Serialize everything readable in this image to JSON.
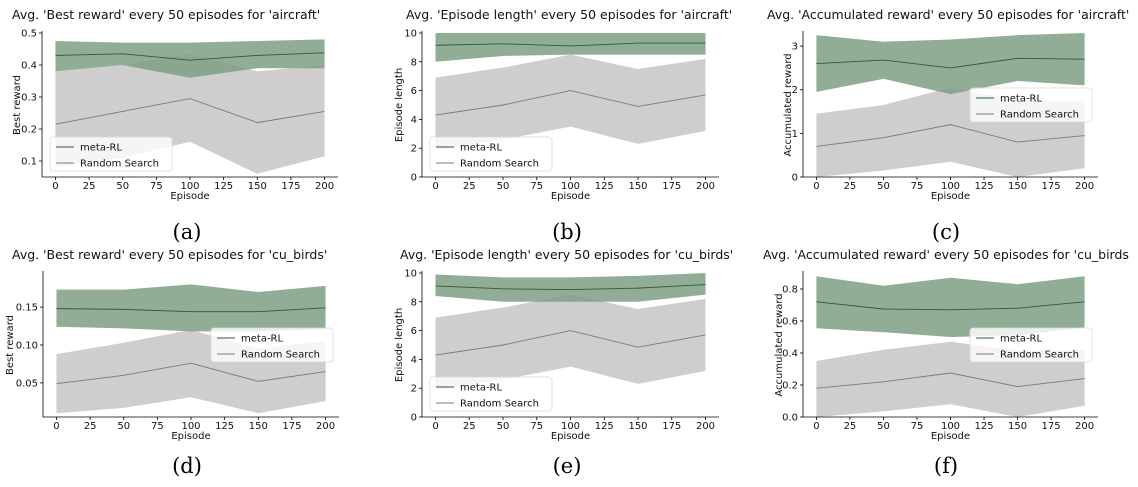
{
  "colors": {
    "meta_rl_line": "#2f5a39",
    "meta_rl_band": "#7f9f84",
    "random_line": "#7a7a7a",
    "random_band": "#bdbdbd"
  },
  "chart_data": [
    {
      "type": "line",
      "caption": "(a)",
      "title": "Avg. 'Best reward' every 50 episodes for 'aircraft'",
      "xlabel": "Episode",
      "ylabel": "Best reward",
      "xlim": [
        -10,
        210
      ],
      "ylim": [
        0.05,
        0.5
      ],
      "xticks": [
        0,
        25,
        50,
        75,
        100,
        125,
        150,
        175,
        200
      ],
      "yticks": [
        0.1,
        0.2,
        0.3,
        0.4,
        0.5
      ],
      "ytick_labels": [
        "0.1",
        "0.2",
        "0.3",
        "0.4",
        "0.5"
      ],
      "legend": "lower-left",
      "series": [
        {
          "name": "meta-RL",
          "x": [
            0,
            50,
            100,
            150,
            200
          ],
          "values": [
            0.43,
            0.435,
            0.415,
            0.43,
            0.438
          ],
          "lower": [
            0.38,
            0.4,
            0.36,
            0.39,
            0.39
          ],
          "upper": [
            0.475,
            0.47,
            0.47,
            0.475,
            0.48
          ]
        },
        {
          "name": "Random Search",
          "x": [
            0,
            50,
            100,
            150,
            200
          ],
          "values": [
            0.215,
            0.255,
            0.295,
            0.22,
            0.255
          ],
          "lower": [
            0.08,
            0.11,
            0.16,
            0.06,
            0.115
          ],
          "upper": [
            0.38,
            0.4,
            0.435,
            0.38,
            0.4
          ]
        }
      ]
    },
    {
      "type": "line",
      "caption": "(b)",
      "title": "Avg. 'Episode length' every 50 episodes for 'aircraft'",
      "xlabel": "Episode",
      "ylabel": "Episode length",
      "xlim": [
        -10,
        210
      ],
      "ylim": [
        0,
        10
      ],
      "xticks": [
        0,
        25,
        50,
        75,
        100,
        125,
        150,
        175,
        200
      ],
      "yticks": [
        0,
        2,
        4,
        6,
        8,
        10
      ],
      "ytick_labels": [
        "0",
        "2",
        "4",
        "6",
        "8",
        "10"
      ],
      "legend": "lower-left",
      "series": [
        {
          "name": "meta-RL",
          "x": [
            0,
            50,
            100,
            150,
            200
          ],
          "values": [
            9.15,
            9.25,
            9.1,
            9.3,
            9.3
          ],
          "lower": [
            8.0,
            8.4,
            8.5,
            8.5,
            8.5
          ],
          "upper": [
            10.0,
            10.0,
            10.0,
            10.0,
            10.0
          ]
        },
        {
          "name": "Random Search",
          "x": [
            0,
            50,
            100,
            150,
            200
          ],
          "values": [
            4.3,
            5.0,
            6.0,
            4.9,
            5.7
          ],
          "lower": [
            1.9,
            2.6,
            3.5,
            2.3,
            3.2
          ],
          "upper": [
            6.9,
            7.6,
            8.5,
            7.5,
            8.2
          ]
        }
      ]
    },
    {
      "type": "line",
      "caption": "(c)",
      "title": "Avg. 'Accumulated reward' every 50 episodes for 'aircraft'",
      "xlabel": "Episode",
      "ylabel": "Accumulated reward",
      "xlim": [
        -10,
        210
      ],
      "ylim": [
        0,
        3.3
      ],
      "xticks": [
        0,
        25,
        50,
        75,
        100,
        125,
        150,
        175,
        200
      ],
      "yticks": [
        0,
        1,
        2,
        3
      ],
      "ytick_labels": [
        "0",
        "1",
        "2",
        "3"
      ],
      "legend": "center-right",
      "series": [
        {
          "name": "meta-RL",
          "x": [
            0,
            50,
            100,
            150,
            200
          ],
          "values": [
            2.6,
            2.68,
            2.5,
            2.72,
            2.7
          ],
          "lower": [
            1.95,
            2.25,
            1.9,
            2.2,
            2.1
          ],
          "upper": [
            3.25,
            3.1,
            3.15,
            3.25,
            3.3
          ]
        },
        {
          "name": "Random Search",
          "x": [
            0,
            50,
            100,
            150,
            200
          ],
          "values": [
            0.7,
            0.9,
            1.2,
            0.8,
            0.95
          ],
          "lower": [
            0.0,
            0.15,
            0.35,
            0.0,
            0.2
          ],
          "upper": [
            1.45,
            1.65,
            2.05,
            1.75,
            1.75
          ]
        }
      ]
    },
    {
      "type": "line",
      "caption": "(d)",
      "title": "Avg. 'Best reward' every 50 episodes for 'cu_birds'",
      "xlabel": "Episode",
      "ylabel": "Best reward",
      "xlim": [
        -10,
        210
      ],
      "ylim": [
        0.005,
        0.195
      ],
      "xticks": [
        0,
        25,
        50,
        75,
        100,
        125,
        150,
        175,
        200
      ],
      "yticks": [
        0.05,
        0.1,
        0.15
      ],
      "ytick_labels": [
        "0.05",
        "0.10",
        "0.15"
      ],
      "legend": "center-right",
      "series": [
        {
          "name": "meta-RL",
          "x": [
            0,
            50,
            100,
            150,
            200
          ],
          "values": [
            0.148,
            0.147,
            0.144,
            0.144,
            0.149
          ],
          "lower": [
            0.124,
            0.122,
            0.118,
            0.118,
            0.121
          ],
          "upper": [
            0.173,
            0.173,
            0.18,
            0.17,
            0.178
          ]
        },
        {
          "name": "Random Search",
          "x": [
            0,
            50,
            100,
            150,
            200
          ],
          "values": [
            0.049,
            0.06,
            0.076,
            0.052,
            0.065
          ],
          "lower": [
            0.01,
            0.017,
            0.031,
            0.01,
            0.026
          ],
          "upper": [
            0.088,
            0.103,
            0.12,
            0.095,
            0.105
          ]
        }
      ]
    },
    {
      "type": "line",
      "caption": "(e)",
      "title": "Avg. 'Episode length' every 50 episodes for 'cu_birds'",
      "xlabel": "Episode",
      "ylabel": "Episode length",
      "xlim": [
        -10,
        210
      ],
      "ylim": [
        0,
        10
      ],
      "xticks": [
        0,
        25,
        50,
        75,
        100,
        125,
        150,
        175,
        200
      ],
      "yticks": [
        0,
        2,
        4,
        6,
        8,
        10
      ],
      "ytick_labels": [
        "0",
        "2",
        "4",
        "6",
        "8",
        "10"
      ],
      "legend": "lower-left",
      "series": [
        {
          "name": "meta-RL",
          "x": [
            0,
            50,
            100,
            150,
            200
          ],
          "values": [
            9.1,
            8.9,
            8.85,
            8.95,
            9.2
          ],
          "lower": [
            8.4,
            8.0,
            8.0,
            8.0,
            8.5
          ],
          "upper": [
            9.9,
            9.7,
            9.7,
            9.8,
            10.0
          ]
        },
        {
          "name": "Random Search",
          "x": [
            0,
            50,
            100,
            150,
            200
          ],
          "values": [
            4.3,
            5.0,
            6.0,
            4.85,
            5.7
          ],
          "lower": [
            1.9,
            2.6,
            3.5,
            2.3,
            3.2
          ],
          "upper": [
            6.9,
            7.6,
            8.5,
            7.5,
            8.2
          ]
        }
      ]
    },
    {
      "type": "line",
      "caption": "(f)",
      "title": "Avg. 'Accumulated reward' every 50 episodes for 'cu_birds",
      "xlabel": "Episode",
      "ylabel": "Accumulated reward",
      "xlim": [
        -10,
        210
      ],
      "ylim": [
        0,
        0.9
      ],
      "xticks": [
        0,
        25,
        50,
        75,
        100,
        125,
        150,
        175,
        200
      ],
      "yticks": [
        0,
        0.2,
        0.4,
        0.6,
        0.8
      ],
      "ytick_labels": [
        "0.0",
        "0.2",
        "0.4",
        "0.6",
        "0.8"
      ],
      "legend": "center-right",
      "series": [
        {
          "name": "meta-RL",
          "x": [
            0,
            50,
            100,
            150,
            200
          ],
          "values": [
            0.72,
            0.675,
            0.67,
            0.68,
            0.72
          ],
          "lower": [
            0.555,
            0.53,
            0.5,
            0.51,
            0.56
          ],
          "upper": [
            0.88,
            0.82,
            0.87,
            0.83,
            0.88
          ]
        },
        {
          "name": "Random Search",
          "x": [
            0,
            50,
            100,
            150,
            200
          ],
          "values": [
            0.18,
            0.22,
            0.275,
            0.19,
            0.24
          ],
          "lower": [
            0.0,
            0.035,
            0.08,
            0.0,
            0.07
          ],
          "upper": [
            0.35,
            0.42,
            0.47,
            0.415,
            0.42
          ]
        }
      ]
    }
  ]
}
